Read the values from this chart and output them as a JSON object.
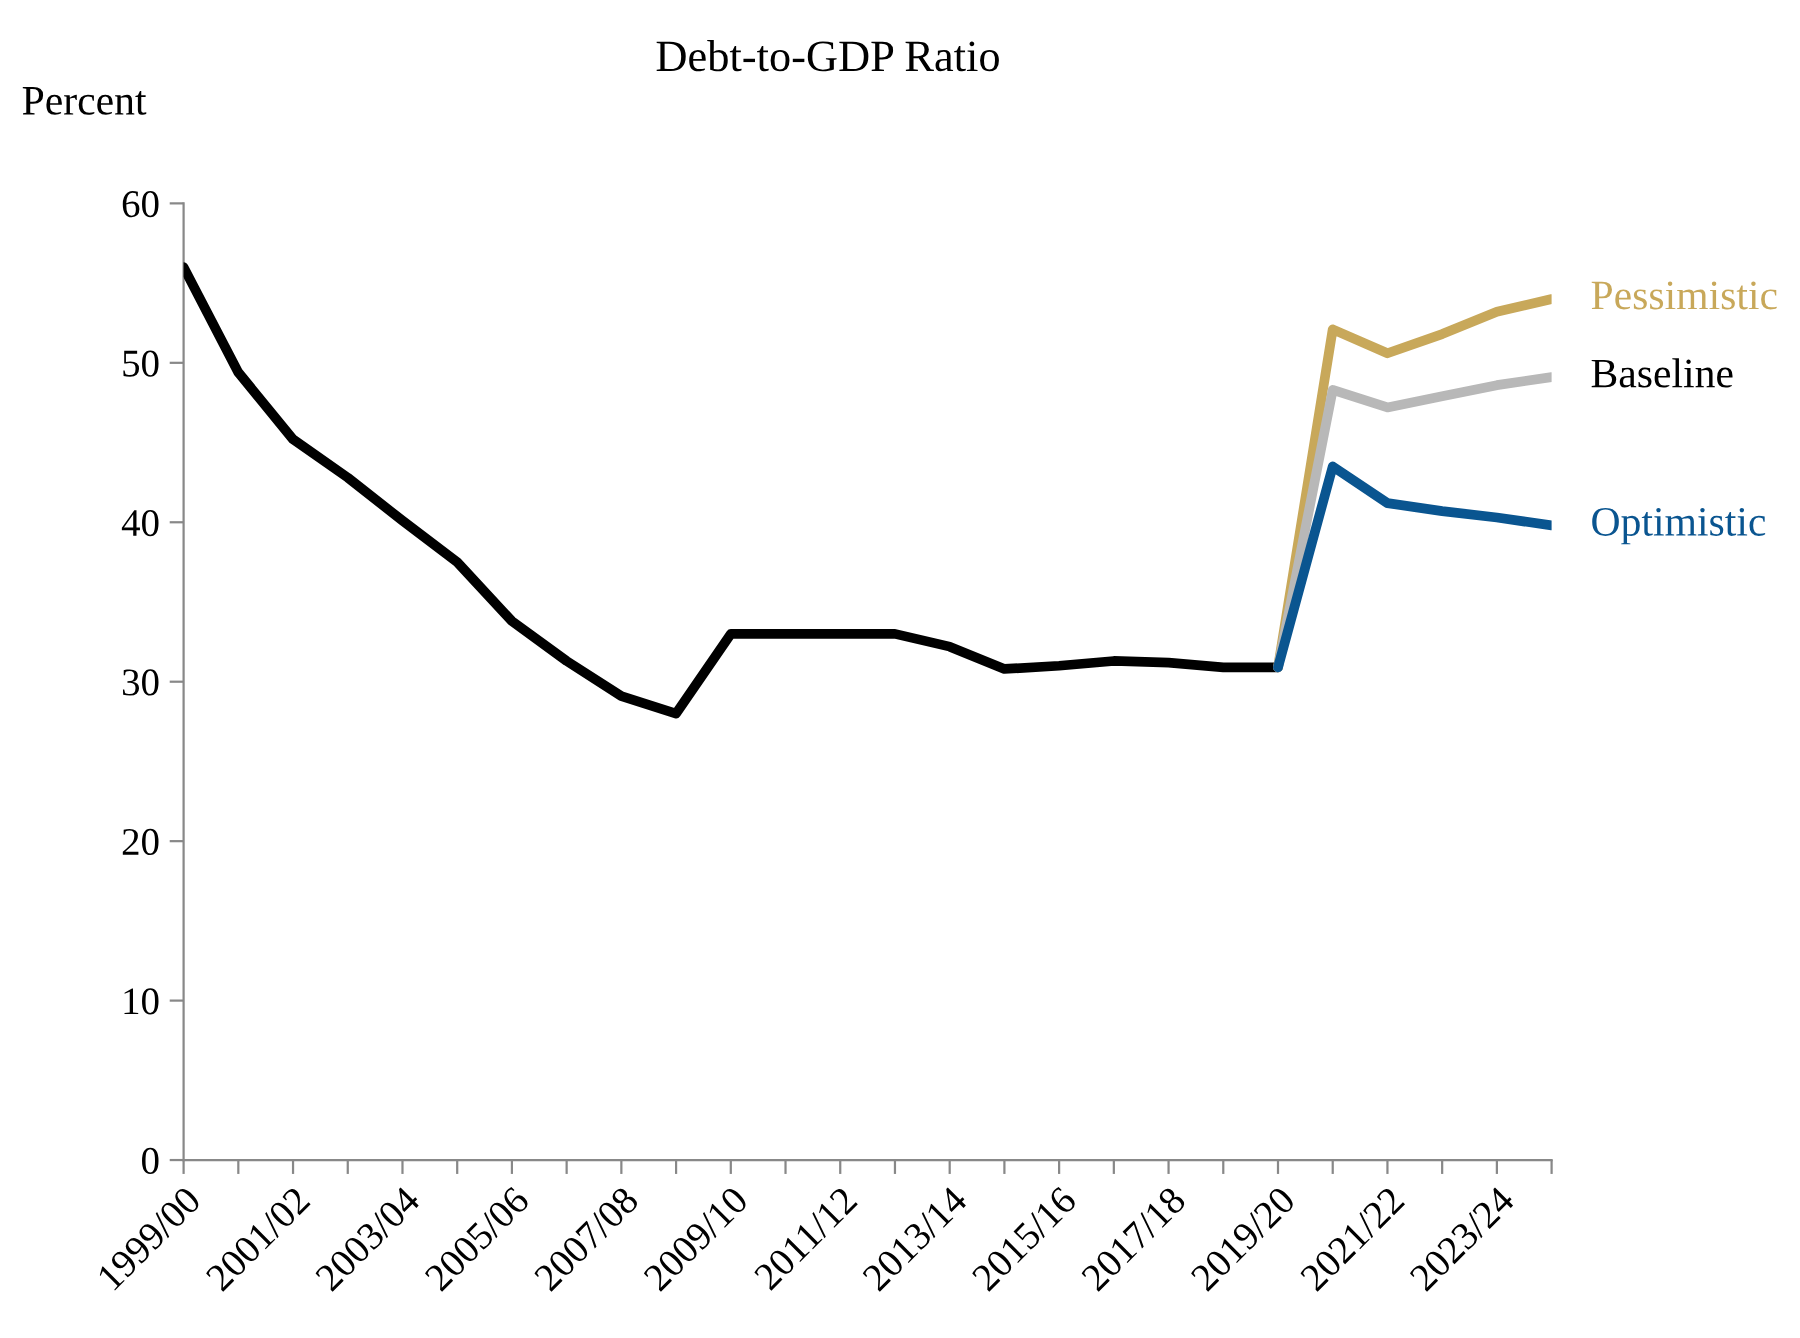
{
  "chart_data": {
    "type": "line",
    "title": "Debt-to-GDP Ratio",
    "ylabel": "Percent",
    "categories": [
      "1999/00",
      null,
      "2001/02",
      null,
      "2003/04",
      null,
      "2005/06",
      null,
      "2007/08",
      null,
      "2009/10",
      null,
      "2011/12",
      null,
      "2013/14",
      null,
      "2015/16",
      null,
      "2017/18",
      null,
      "2019/20",
      null,
      "2021/22",
      null,
      "2023/24",
      null
    ],
    "series": [
      {
        "color": "#000000",
        "values": [
          56,
          49.4,
          45.2,
          42.8,
          40.1,
          37.5,
          33.8,
          31.3,
          29.1,
          28,
          33,
          33,
          33,
          33,
          32.2,
          30.8,
          31,
          31.3,
          31.2,
          30.9,
          30.9,
          null,
          null,
          null,
          null,
          null
        ]
      },
      {
        "name": "Pessimistic",
        "color": "#c8a85a",
        "values": [
          null,
          null,
          null,
          null,
          null,
          null,
          null,
          null,
          null,
          null,
          null,
          null,
          null,
          null,
          null,
          null,
          null,
          null,
          null,
          null,
          30.9,
          52.1,
          50.6,
          51.8,
          53.2,
          54
        ]
      },
      {
        "name": "Baseline",
        "color": "#b8b8b8",
        "values": [
          null,
          null,
          null,
          null,
          null,
          null,
          null,
          null,
          null,
          null,
          null,
          null,
          null,
          null,
          null,
          null,
          null,
          null,
          null,
          null,
          30.9,
          48.3,
          47.2,
          47.9,
          48.6,
          49.1
        ]
      },
      {
        "name": "Optimistic",
        "color": "#0a5590",
        "values": [
          null,
          null,
          null,
          null,
          null,
          null,
          null,
          null,
          null,
          null,
          null,
          null,
          null,
          null,
          null,
          null,
          null,
          null,
          null,
          null,
          30.9,
          43.5,
          41.2,
          40.7,
          40.3,
          39.8
        ]
      }
    ],
    "ylim": [
      0,
      60
    ],
    "yticks": [
      0,
      10,
      20,
      30,
      40,
      50,
      60
    ],
    "grid": false,
    "legend": false,
    "marker": "none",
    "line_style": "solid"
  }
}
